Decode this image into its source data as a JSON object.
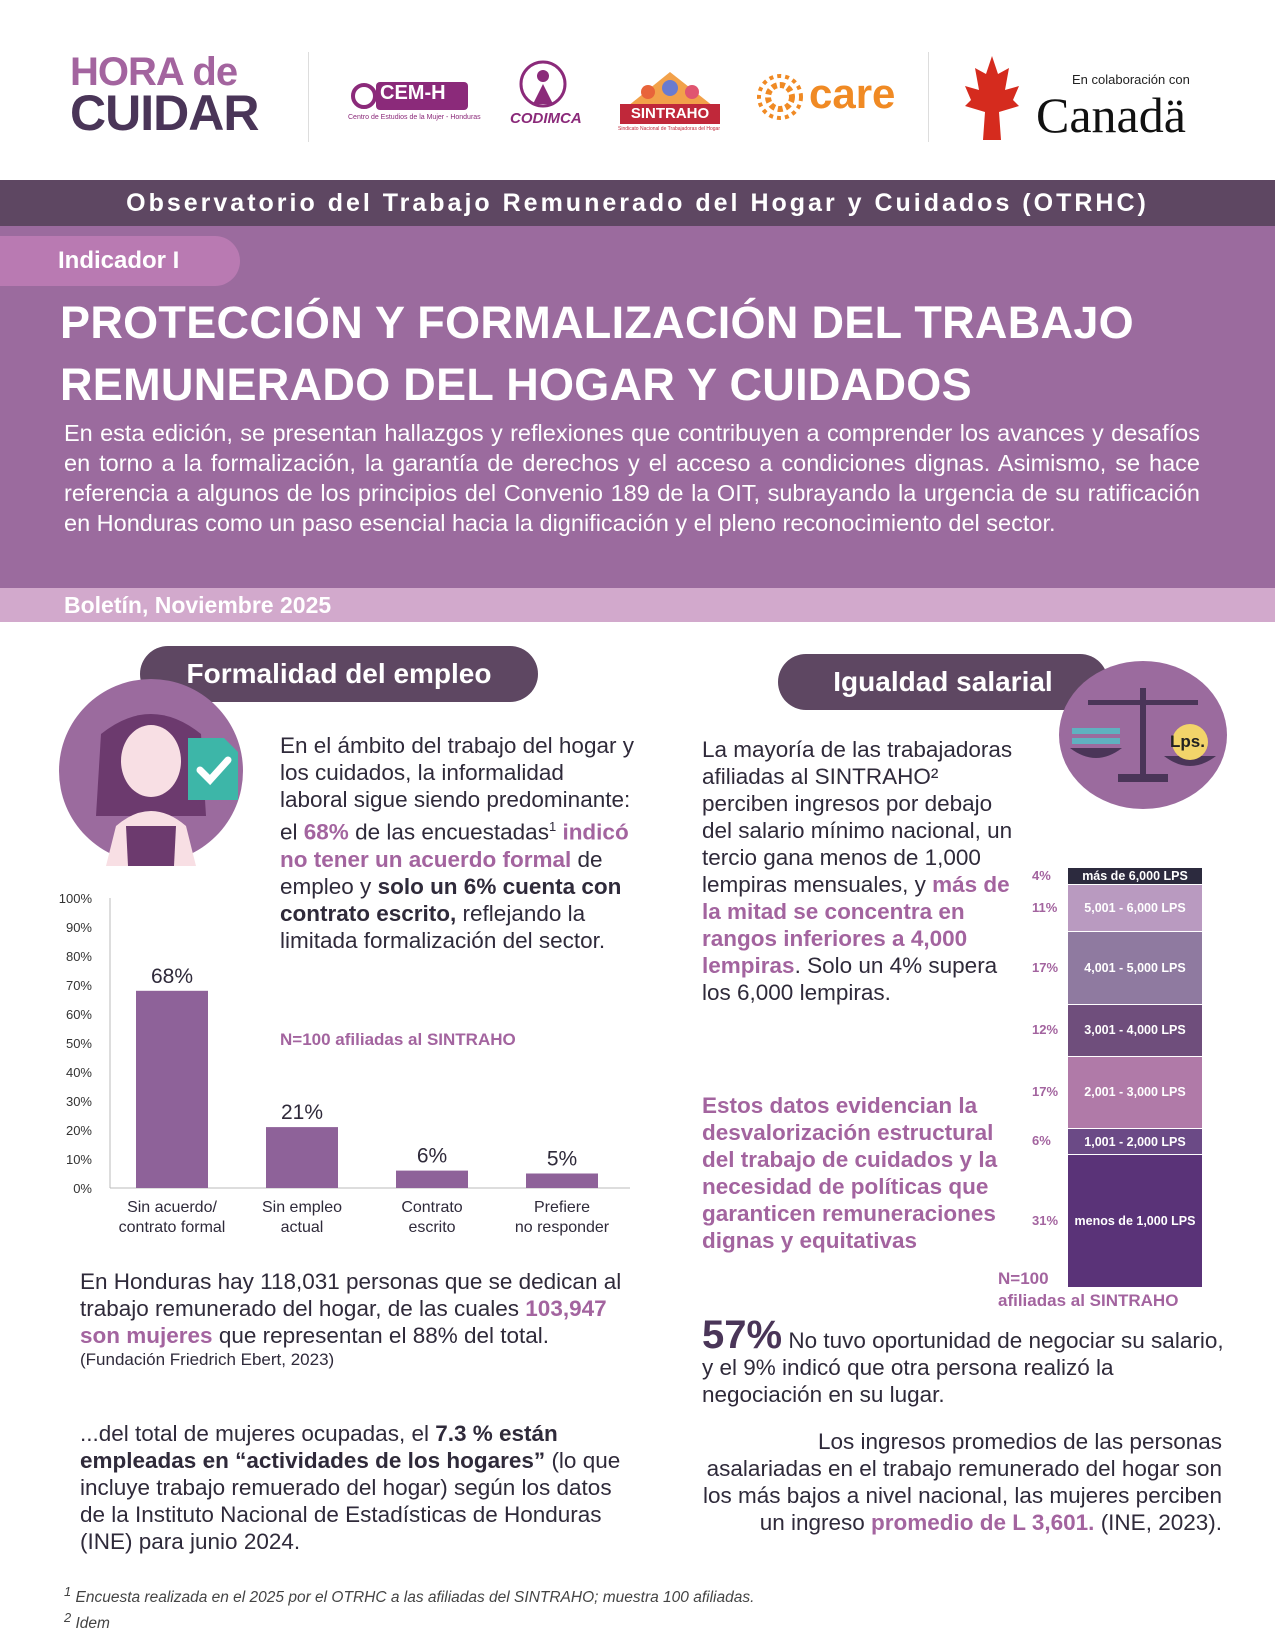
{
  "logos": {
    "hora_line1": "HORA de",
    "hora_line2": "CUIDAR",
    "cemh": "CEM-H",
    "cemh_sub": "Centro de Estudios de la Mujer - Honduras",
    "codimca": "CODIMCA",
    "sintraho": "SINTRAHO",
    "sintraho_sub": "Sindicato Nacional de Trabajadoras del Hogar",
    "care": "care",
    "canada_collab": "En colaboración con",
    "canada": "Canadä"
  },
  "header": {
    "observatorio": "Observatorio del Trabajo Remunerado del Hogar y Cuidados (OTRHC)",
    "indicador": "Indicador I",
    "title_line1": "PROTECCIÓN Y FORMALIZACIÓN DEL TRABAJO",
    "title_line2": "REMUNERADO DEL HOGAR Y CUIDADOS",
    "intro": "En esta edición, se presentan hallazgos y reflexiones que contribuyen a comprender los avances y desafíos en torno a la formalización, la garantía de derechos y el acceso a condiciones dignas. Asimismo, se hace referencia a algunos de los principios del Convenio 189 de la OIT, subrayando la urgencia de su ratificación en Honduras como un paso esencial hacia la dignificación y el pleno reconocimiento del sector.",
    "boletin": "Boletín, Noviembre 2025"
  },
  "formalidad": {
    "title": "Formalidad del empleo",
    "p1a": "En el ámbito del trabajo del hogar y los cuidados, la informalidad laboral sigue siendo predominante: el ",
    "p1b": "68%",
    "p1c": " de las encuestadas",
    "p1sup": "1",
    "p1d": " indicó no tener un acuerdo formal",
    "p1e": " de empleo y ",
    "p1f": "solo un 6% cuenta con contrato escrito,",
    "p1g": " reflejando la limitada formalización del sector.",
    "n_note": "N=100 afiliadas al SINTRAHO",
    "p2a": "En Honduras hay 118,031 personas que se dedican al trabajo remunerado del hogar, de las cuales ",
    "p2b": "103,947 son mujeres",
    "p2c": " que representan el 88% del total.",
    "p2src": "(Fundación Friedrich Ebert, 2023)",
    "p3a": "...del total de mujeres ocupadas, el ",
    "p3b": "7.3 % están empleadas en “actividades de los hogares”",
    "p3c": " (lo que incluye trabajo remuerado del hogar) según los datos de la Instituto Nacional de Estadísticas de Honduras (INE) para junio 2024."
  },
  "chart_data": [
    {
      "type": "bar",
      "categories": [
        "Sin acuerdo/ contrato formal",
        "Sin empleo actual",
        "Contrato escrito",
        "Prefiere no responder"
      ],
      "category_lines": [
        [
          "Sin acuerdo/",
          "contrato formal"
        ],
        [
          "Sin empleo",
          "actual"
        ],
        [
          "Contrato",
          "escrito"
        ],
        [
          "Prefiere",
          "no responder"
        ]
      ],
      "values": [
        68,
        21,
        6,
        5
      ],
      "value_labels": [
        "68%",
        "21%",
        "6%",
        "5%"
      ],
      "ylim": [
        0,
        100
      ],
      "yticks": [
        "0%",
        "10%",
        "20%",
        "30%",
        "40%",
        "50%",
        "60%",
        "70%",
        "80%",
        "90%",
        "100%"
      ],
      "bar_color": "#8e6299",
      "grid": false
    },
    {
      "type": "bar",
      "stacked": true,
      "categories": [
        "menos de 1,000 LPS",
        "1,001 - 2,000 LPS",
        "2,001 - 3,000 LPS",
        "3,001 - 4,000 LPS",
        "4,001 - 5,000 LPS",
        "5,001 - 6,000 LPS",
        "más de 6,000 LPS"
      ],
      "values": [
        31,
        6,
        17,
        12,
        17,
        11,
        4
      ],
      "value_labels": [
        "31%",
        "6%",
        "17%",
        "12%",
        "17%",
        "11%",
        "4%"
      ],
      "colors": [
        "#5a3378",
        "#6b4a86",
        "#b07aa8",
        "#6f4e7c",
        "#8f7aa0",
        "#b99ac0",
        "#2c2a3e"
      ],
      "note": "N=100 afiliadas al SINTRAHO"
    }
  ],
  "igualdad": {
    "title": "Igualdad salarial",
    "lps": "Lps.",
    "p1a": "La mayoría de las trabajadoras afiliadas al SINTRAHO² perciben ingresos por debajo del salario mínimo nacional, un tercio gana menos de 1,000 lempiras mensuales, y ",
    "p1b": "más de la mitad se concentra en rangos inferiores a 4,000 lempiras",
    "p1c": ". Solo un 4% supera los 6,000 lempiras.",
    "p2": "Estos datos evidencian la desvalorización estructural del trabajo de cuidados y la necesidad de políticas que garanticen remuneraciones dignas y equitativas",
    "n_line1": "N=100",
    "n_line2": "afiliadas al SINTRAHO",
    "big": "57%",
    "p3": " No tuvo oportunidad de negociar su salario, y el 9% indicó que otra persona realizó la negociación en su lugar.",
    "p4a": "Los ingresos promedios de las personas asalariadas en el trabajo remunerado del hogar son los más bajos a nivel nacional, las mujeres perciben un ingreso ",
    "p4b": "promedio de L 3,601.",
    "p4c": "  (INE, 2023)."
  },
  "footnotes": {
    "f1": "Encuesta realizada en el 2025 por el OTRHC a las afiliadas del SINTRAHO; muestra 100 afiliadas.",
    "f1sup": "1",
    "f2": "Idem",
    "f2sup": "2"
  },
  "colors": {
    "accent": "#a3649f",
    "dark": "#5e4762",
    "hero": "#9b6b9e",
    "boletin": "#d2a9cc"
  }
}
